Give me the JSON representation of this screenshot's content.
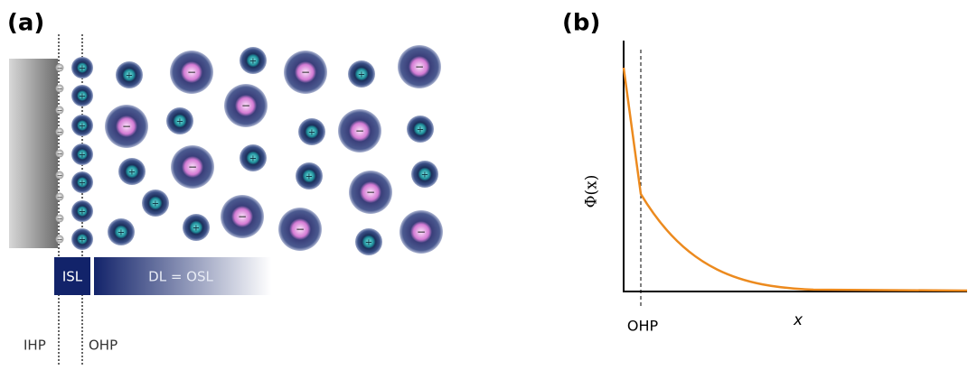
{
  "panel_a": {
    "label": "(a)",
    "isl": "ISL",
    "dl": "DL = OSL",
    "ihp": "IHP",
    "ohp": "OHP",
    "cation_sign": "+",
    "anion_sign": "−",
    "surface_sign": "−"
  },
  "panel_b": {
    "label": "(b)",
    "y_label": "Φ(x)",
    "x_label": "x",
    "ohp": "OHP"
  }
}
